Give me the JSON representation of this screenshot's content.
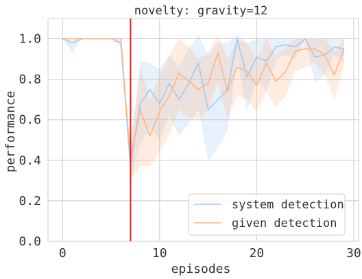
{
  "chart_data": {
    "type": "line",
    "title": "novelty: gravity=12",
    "xlabel": "episodes",
    "ylabel": "performance",
    "xlim": [
      -1.5,
      30.5
    ],
    "ylim": [
      0.0,
      1.1
    ],
    "xticks": [
      0,
      10,
      20,
      30
    ],
    "yticks": [
      0.0,
      0.2,
      0.4,
      0.6,
      0.8,
      1.0
    ],
    "xtick_labels": [
      "0",
      "10",
      "20",
      "30"
    ],
    "ytick_labels": [
      "0.0",
      "0.2",
      "0.4",
      "0.6",
      "0.8",
      "1.0"
    ],
    "grid": true,
    "legend_position": "lower-right",
    "vline": {
      "x": 7,
      "color": "#d62728"
    },
    "x": [
      0,
      1,
      2,
      3,
      4,
      5,
      6,
      7,
      8,
      9,
      10,
      11,
      12,
      13,
      14,
      15,
      16,
      17,
      18,
      19,
      20,
      21,
      22,
      23,
      24,
      25,
      26,
      27,
      28,
      29
    ],
    "series": [
      {
        "name": "system detection",
        "color": "#a1c9f4",
        "values": [
          1.0,
          0.98,
          1.0,
          1.0,
          1.0,
          1.0,
          0.98,
          0.38,
          0.68,
          0.75,
          0.68,
          0.78,
          0.7,
          0.78,
          0.88,
          0.65,
          0.7,
          0.75,
          1.0,
          0.81,
          0.91,
          0.89,
          0.96,
          0.97,
          0.96,
          1.0,
          0.91,
          0.92,
          0.96,
          0.95
        ],
        "lower": [
          1.0,
          0.93,
          1.0,
          1.0,
          1.0,
          1.0,
          0.96,
          0.3,
          0.48,
          0.56,
          0.5,
          0.62,
          0.52,
          0.58,
          0.65,
          0.4,
          0.46,
          0.55,
          0.9,
          0.64,
          0.8,
          0.74,
          0.9,
          0.92,
          0.9,
          1.0,
          0.78,
          0.82,
          0.92,
          0.88
        ],
        "upper": [
          1.0,
          1.0,
          1.0,
          1.0,
          1.0,
          1.0,
          1.0,
          0.45,
          0.89,
          0.88,
          0.85,
          0.92,
          0.86,
          0.95,
          1.02,
          0.92,
          0.98,
          0.98,
          1.02,
          0.98,
          1.0,
          1.0,
          1.0,
          1.0,
          1.0,
          1.0,
          1.0,
          1.0,
          1.0,
          1.0
        ]
      },
      {
        "name": "given detection",
        "color": "#ffb482",
        "values": [
          1.0,
          1.0,
          1.0,
          1.0,
          1.0,
          1.0,
          1.0,
          0.4,
          0.65,
          0.52,
          0.64,
          0.72,
          0.83,
          0.79,
          0.75,
          0.78,
          0.93,
          0.74,
          0.86,
          0.84,
          0.77,
          0.88,
          0.79,
          0.84,
          0.94,
          0.95,
          0.95,
          0.92,
          0.82,
          0.95
        ],
        "lower": [
          1.0,
          1.0,
          1.0,
          1.0,
          1.0,
          1.0,
          1.0,
          0.3,
          0.37,
          0.37,
          0.44,
          0.53,
          0.65,
          0.61,
          0.6,
          0.65,
          0.78,
          0.6,
          0.72,
          0.7,
          0.64,
          0.74,
          0.66,
          0.72,
          0.84,
          0.86,
          0.88,
          0.82,
          0.7,
          0.87
        ],
        "upper": [
          1.0,
          1.0,
          1.0,
          1.0,
          1.0,
          1.0,
          1.0,
          0.46,
          0.86,
          0.7,
          0.82,
          0.92,
          1.0,
          0.96,
          0.9,
          0.93,
          1.02,
          0.9,
          0.99,
          0.98,
          0.9,
          1.0,
          0.92,
          0.96,
          1.0,
          1.0,
          1.0,
          1.0,
          0.94,
          1.0
        ]
      }
    ]
  }
}
